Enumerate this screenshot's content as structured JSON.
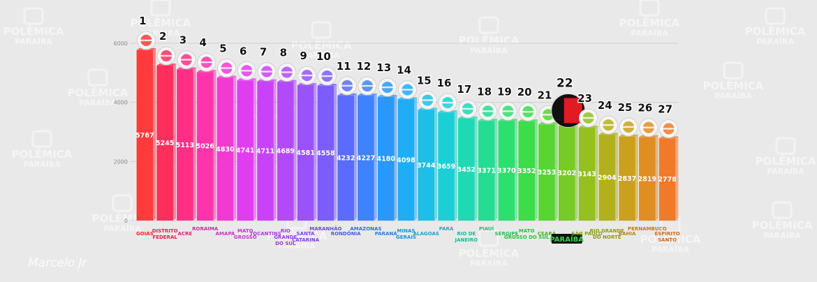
{
  "watermark": {
    "line1": "POLÊMICA",
    "line2": "PARAÍBA"
  },
  "signature": "Marcelo Jr",
  "colors": {
    "background": "#e9e9e9",
    "grid": "#cfcfcf",
    "rank_badge": "#111111",
    "highlight_label_bg": "#111111",
    "highlight_label_text": "#3bd14a"
  },
  "chart_data": {
    "type": "bar",
    "title": "",
    "xlabel": "",
    "ylabel": "",
    "ylim": [
      0,
      6000
    ],
    "yticks": [
      "0",
      "2000",
      "4000",
      "6000"
    ],
    "grid": true,
    "legend": "none",
    "highlight_rank": "22",
    "bars": [
      {
        "rank": "1",
        "state_lines": [
          "GOIÁS"
        ],
        "value": 5767,
        "value_label": "5767",
        "color": "#ff3b3b",
        "label_color": "#e8262e"
      },
      {
        "rank": "2",
        "state_lines": [
          "DISTRITO",
          "FEDERAL"
        ],
        "value": 5245,
        "value_label": "5245",
        "color": "#ff2f5d",
        "label_color": "#e2204d"
      },
      {
        "rank": "3",
        "state_lines": [
          "ACRE"
        ],
        "value": 5113,
        "value_label": "5113",
        "color": "#ff2f86",
        "label_color": "#e0207a"
      },
      {
        "rank": "4",
        "state_lines": [
          "RORAIMA"
        ],
        "value": 5026,
        "value_label": "5026",
        "color": "#ff33ab",
        "label_color": "#dc23a0"
      },
      {
        "rank": "5",
        "state_lines": [
          "AMAPÁ"
        ],
        "value": 4830,
        "value_label": "4830",
        "color": "#f23ad2",
        "label_color": "#d22dc0"
      },
      {
        "rank": "6",
        "state_lines": [
          "MATO",
          "GROSSO"
        ],
        "value": 4741,
        "value_label": "4741",
        "color": "#e13df0",
        "label_color": "#c830d8"
      },
      {
        "rank": "7",
        "state_lines": [
          "TOCANTINS"
        ],
        "value": 4711,
        "value_label": "4711",
        "color": "#c843f7",
        "label_color": "#b035e0"
      },
      {
        "rank": "8",
        "state_lines": [
          "RIO",
          "GRANDE",
          "DO SUL"
        ],
        "value": 4689,
        "value_label": "4689",
        "color": "#b24af9",
        "label_color": "#9a38e0"
      },
      {
        "rank": "9",
        "state_lines": [
          "SANTA",
          "CATARINA"
        ],
        "value": 4581,
        "value_label": "4581",
        "color": "#9a52fb",
        "label_color": "#8440e2"
      },
      {
        "rank": "10",
        "state_lines": [
          "MARANHÃO"
        ],
        "value": 4558,
        "value_label": "4558",
        "color": "#7d5cfc",
        "label_color": "#6a48e4"
      },
      {
        "rank": "11",
        "state_lines": [
          "RONDÔNIA"
        ],
        "value": 4232,
        "value_label": "4232",
        "color": "#5a6cfd",
        "label_color": "#4a58e6"
      },
      {
        "rank": "12",
        "state_lines": [
          "AMAZONAS"
        ],
        "value": 4227,
        "value_label": "4227",
        "color": "#3f82fd",
        "label_color": "#326ce4"
      },
      {
        "rank": "13",
        "state_lines": [
          "PARANÁ"
        ],
        "value": 4180,
        "value_label": "4180",
        "color": "#2a98fb",
        "label_color": "#2280e0"
      },
      {
        "rank": "14",
        "state_lines": [
          "MINAS",
          "GERAIS"
        ],
        "value": 4098,
        "value_label": "4098",
        "color": "#1fadf5",
        "label_color": "#1892d6"
      },
      {
        "rank": "15",
        "state_lines": [
          "ALAGOAS"
        ],
        "value": 3744,
        "value_label": "3744",
        "color": "#1cbfe8",
        "label_color": "#16a2c8"
      },
      {
        "rank": "16",
        "state_lines": [
          "PARÁ"
        ],
        "value": 3659,
        "value_label": "3659",
        "color": "#1ccfd4",
        "label_color": "#16b0b6"
      },
      {
        "rank": "17",
        "state_lines": [
          "RIO DE",
          "JANEIRO"
        ],
        "value": 3452,
        "value_label": "3452",
        "color": "#1fd8b4",
        "label_color": "#18b896"
      },
      {
        "rank": "18",
        "state_lines": [
          "PIAUÍ"
        ],
        "value": 3371,
        "value_label": "3371",
        "color": "#24dd92",
        "label_color": "#1cbc78"
      },
      {
        "rank": "19",
        "state_lines": [
          "SERGIPE"
        ],
        "value": 3370,
        "value_label": "3370",
        "color": "#2ddf6e",
        "label_color": "#22be56"
      },
      {
        "rank": "20",
        "state_lines": [
          "MATO",
          "GROSSO DO SUL"
        ],
        "value": 3352,
        "value_label": "3352",
        "color": "#3cdc4a",
        "label_color": "#2fbc3a"
      },
      {
        "rank": "21",
        "state_lines": [
          "CEARÁ"
        ],
        "value": 3253,
        "value_label": "3253",
        "color": "#57d533",
        "label_color": "#44b626"
      },
      {
        "rank": "22",
        "state_lines": [
          "PARAÍBA"
        ],
        "value": 3202,
        "value_label": "3202",
        "color": "#76cb24",
        "label_color": "#3bd14a"
      },
      {
        "rank": "23",
        "state_lines": [
          "SÃO PAULO"
        ],
        "value": 3143,
        "value_label": "3143",
        "color": "#95c01d",
        "label_color": "#7ea412"
      },
      {
        "rank": "24",
        "state_lines": [
          "RIO GRANDE",
          "DO NORTE"
        ],
        "value": 2904,
        "value_label": "2904",
        "color": "#b2b11b",
        "label_color": "#96960f"
      },
      {
        "rank": "25",
        "state_lines": [
          "BAHIA"
        ],
        "value": 2837,
        "value_label": "2837",
        "color": "#cba01d",
        "label_color": "#b08a10"
      },
      {
        "rank": "26",
        "state_lines": [
          "PERNAMBUCO"
        ],
        "value": 2819,
        "value_label": "2819",
        "color": "#e08d22",
        "label_color": "#c67812"
      },
      {
        "rank": "27",
        "state_lines": [
          "ESPÍRITO",
          "SANTO"
        ],
        "value": 2778,
        "value_label": "2778",
        "color": "#f17a2a",
        "label_color": "#d66818"
      }
    ]
  }
}
